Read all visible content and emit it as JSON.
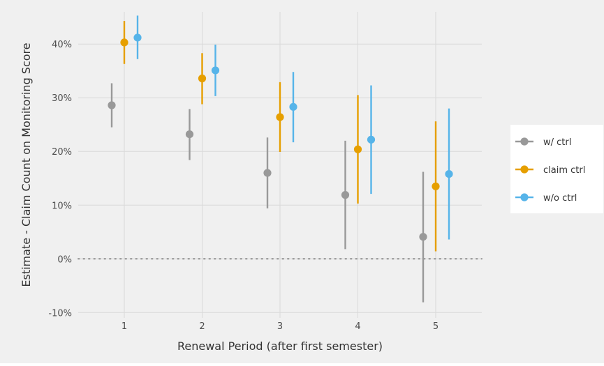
{
  "chart_data": {
    "type": "scatter",
    "title": "",
    "xlabel": "Renewal Period (after first semester)",
    "ylabel": "Estimate - Claim Count on Monitoring Score",
    "x_ticks": [
      "1",
      "2",
      "3",
      "4",
      "5"
    ],
    "y_ticks": [
      "-10%",
      "0%",
      "10%",
      "20%",
      "30%",
      "40%"
    ],
    "ylim": [
      -11,
      46
    ],
    "reference_line": {
      "y": 0,
      "style": "dotted"
    },
    "grid": true,
    "legend_position": "right",
    "series": [
      {
        "name": "w/ ctrl",
        "color": "#999999",
        "points": [
          {
            "x": 1,
            "estimate": 28.6,
            "lower": 24.5,
            "upper": 32.7
          },
          {
            "x": 2,
            "estimate": 23.2,
            "lower": 18.4,
            "upper": 27.9
          },
          {
            "x": 3,
            "estimate": 16.0,
            "lower": 9.4,
            "upper": 22.6
          },
          {
            "x": 4,
            "estimate": 11.9,
            "lower": 1.8,
            "upper": 22.0
          },
          {
            "x": 5,
            "estimate": 4.1,
            "lower": -8.1,
            "upper": 16.2
          }
        ]
      },
      {
        "name": "claim ctrl",
        "color": "#E69F00",
        "points": [
          {
            "x": 1,
            "estimate": 40.3,
            "lower": 36.3,
            "upper": 44.3
          },
          {
            "x": 2,
            "estimate": 33.6,
            "lower": 28.8,
            "upper": 38.3
          },
          {
            "x": 3,
            "estimate": 26.4,
            "lower": 19.9,
            "upper": 32.9
          },
          {
            "x": 4,
            "estimate": 20.4,
            "lower": 10.3,
            "upper": 30.5
          },
          {
            "x": 5,
            "estimate": 13.5,
            "lower": 1.4,
            "upper": 25.6
          }
        ]
      },
      {
        "name": "w/o ctrl",
        "color": "#56B4E9",
        "points": [
          {
            "x": 1,
            "estimate": 41.2,
            "lower": 37.2,
            "upper": 45.3
          },
          {
            "x": 2,
            "estimate": 35.1,
            "lower": 30.3,
            "upper": 39.9
          },
          {
            "x": 3,
            "estimate": 28.3,
            "lower": 21.7,
            "upper": 34.8
          },
          {
            "x": 4,
            "estimate": 22.2,
            "lower": 12.1,
            "upper": 32.3
          },
          {
            "x": 5,
            "estimate": 15.8,
            "lower": 3.6,
            "upper": 28.0
          }
        ]
      }
    ]
  }
}
